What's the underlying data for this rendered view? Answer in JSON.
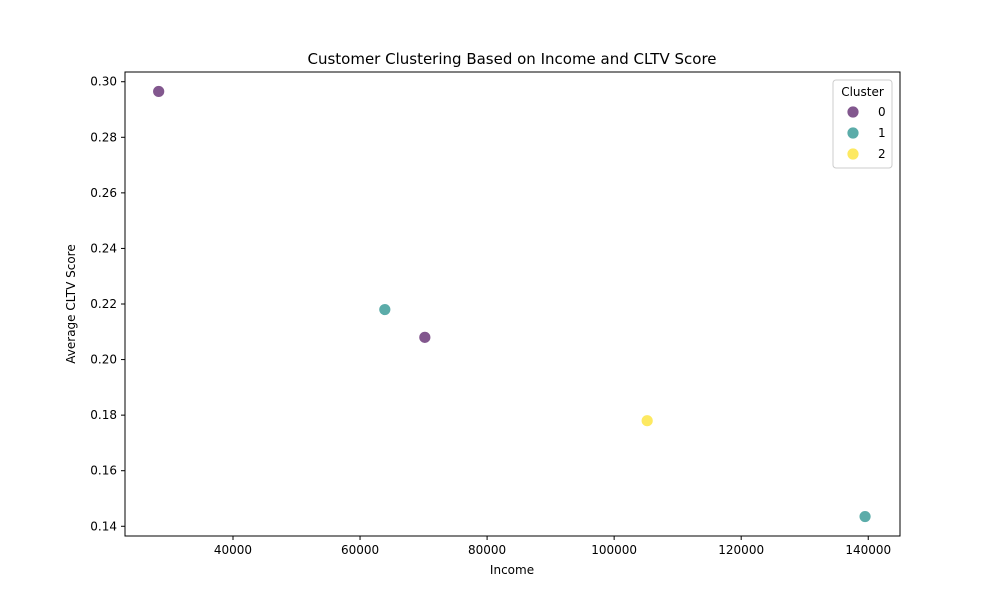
{
  "chart_data": {
    "type": "scatter",
    "title": "Customer Clustering Based on Income and CLTV Score",
    "xlabel": "Income",
    "ylabel": "Average CLTV Score",
    "xlim": [
      23000,
      145000
    ],
    "ylim": [
      0.1365,
      0.3035
    ],
    "xticks": [
      40000,
      60000,
      80000,
      100000,
      120000,
      140000
    ],
    "yticks": [
      0.14,
      0.16,
      0.18,
      0.2,
      0.22,
      0.24,
      0.26,
      0.28,
      0.3
    ],
    "xtick_labels": [
      "40000",
      "60000",
      "80000",
      "100000",
      "120000",
      "140000"
    ],
    "ytick_labels": [
      "0.14",
      "0.16",
      "0.18",
      "0.20",
      "0.22",
      "0.24",
      "0.26",
      "0.28",
      "0.30"
    ],
    "grid": false,
    "legend": {
      "title": "Cluster",
      "placement": "top-right",
      "entries": [
        "0",
        "1",
        "2"
      ]
    },
    "series": [
      {
        "name": "0",
        "color": "#6c3a7a",
        "points": [
          {
            "x": 28300,
            "y": 0.2965
          },
          {
            "x": 70200,
            "y": 0.208
          }
        ]
      },
      {
        "name": "1",
        "color": "#3e9e9a",
        "points": [
          {
            "x": 63900,
            "y": 0.218
          },
          {
            "x": 139500,
            "y": 0.1435
          }
        ]
      },
      {
        "name": "2",
        "color": "#fde545",
        "points": [
          {
            "x": 105200,
            "y": 0.178
          }
        ]
      }
    ]
  }
}
